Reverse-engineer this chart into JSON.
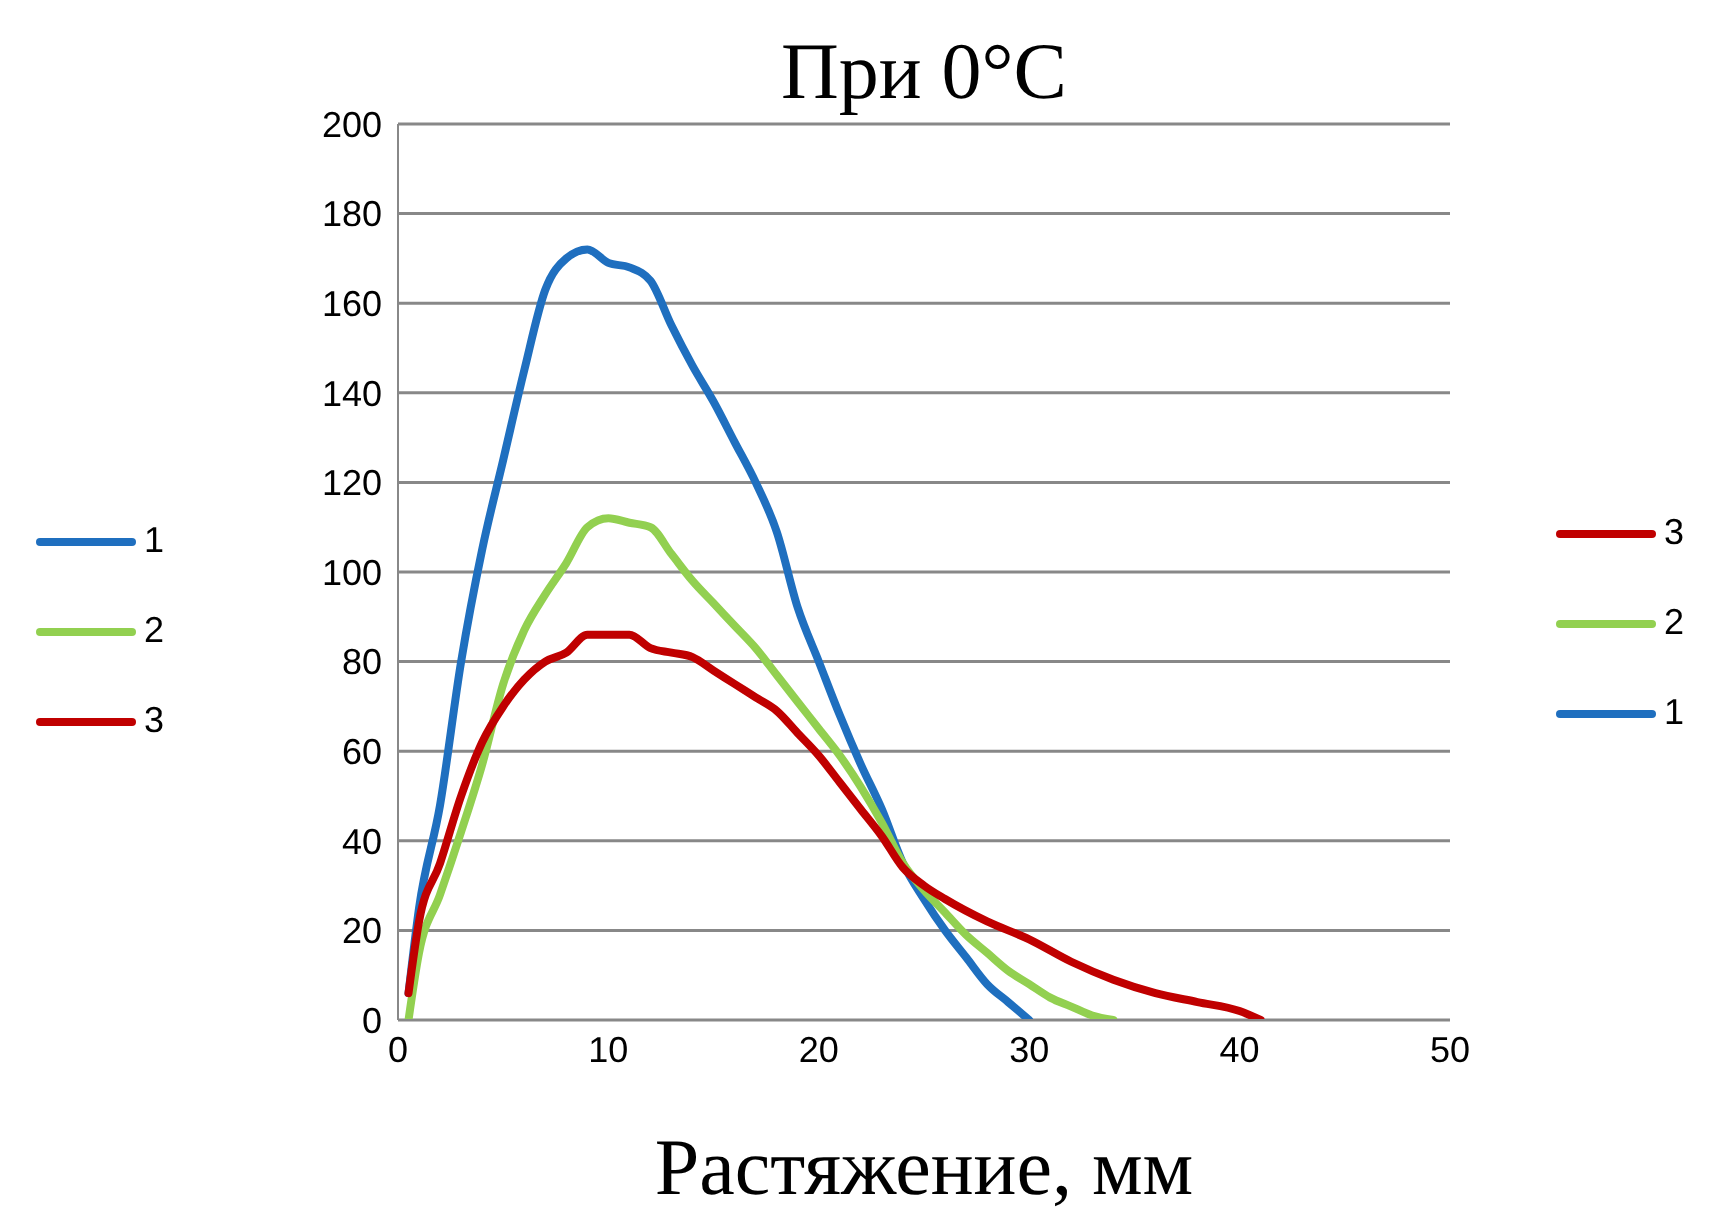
{
  "chart_data": {
    "type": "line",
    "title": "При 0°C",
    "xlabel": "Растяжение, мм",
    "xlim": [
      0,
      50
    ],
    "xticks": [
      0,
      10,
      20,
      30,
      40,
      50
    ],
    "ylim": [
      0,
      200
    ],
    "yticks": [
      0,
      20,
      40,
      60,
      80,
      100,
      120,
      140,
      160,
      180,
      200
    ],
    "grid": "y",
    "legend": "left",
    "marker": "none",
    "line_style": "solid",
    "series": [
      {
        "name": "1",
        "color": "#1f6fbf",
        "x": [
          0.5,
          1,
          2,
          3,
          4,
          5,
          6,
          7,
          8,
          9,
          10,
          11,
          12,
          13,
          14,
          15,
          16,
          17,
          18,
          19,
          20,
          21,
          22,
          23,
          24,
          25,
          26,
          27,
          28,
          29,
          30
        ],
        "values": [
          6,
          25,
          48,
          80,
          105,
          125,
          145,
          163,
          170,
          172,
          169,
          168,
          165,
          155,
          146,
          138,
          129,
          120,
          109,
          92,
          80,
          68,
          57,
          47,
          35,
          27,
          20,
          14,
          8,
          4,
          0
        ]
      },
      {
        "name": "2",
        "color": "#92d050",
        "x": [
          0.5,
          1,
          2,
          3,
          4,
          5,
          6,
          7,
          8,
          9,
          10,
          11,
          12,
          13,
          14,
          15,
          16,
          17,
          18,
          19,
          20,
          21,
          22,
          23,
          24,
          25,
          26,
          27,
          28,
          29,
          30,
          31,
          32,
          33,
          34
        ],
        "values": [
          0,
          15,
          28,
          42,
          57,
          75,
          87,
          95,
          102,
          110,
          112,
          111,
          110,
          104,
          98,
          93,
          88,
          83,
          77,
          71,
          65,
          59,
          52,
          44,
          35,
          29,
          24,
          19,
          15,
          11,
          8,
          5,
          3,
          1,
          0
        ]
      },
      {
        "name": "3",
        "color": "#c00000",
        "x": [
          0.5,
          1,
          2,
          3,
          4,
          5,
          6,
          7,
          8,
          9,
          10,
          11,
          12,
          13,
          14,
          15,
          16,
          17,
          18,
          19,
          20,
          21,
          22,
          23,
          24,
          25,
          26,
          28,
          30,
          32,
          34,
          36,
          38,
          40,
          41
        ],
        "values": [
          6,
          22,
          35,
          50,
          62,
          70,
          76,
          80,
          82,
          86,
          86,
          86,
          83,
          82,
          81,
          78,
          75,
          72,
          69,
          64,
          59,
          53,
          47,
          41,
          34,
          30,
          27,
          22,
          18,
          13,
          9,
          6,
          4,
          2,
          0
        ]
      }
    ]
  }
}
